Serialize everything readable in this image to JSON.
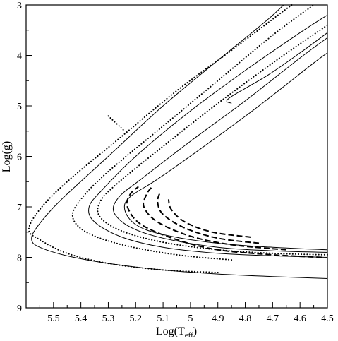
{
  "chart_data": {
    "type": "line",
    "title": "",
    "xlabel_main": "Log(T",
    "xlabel_sub": "eff",
    "xlabel_close": ")",
    "ylabel": "Log(g)",
    "xlim": [
      5.6,
      4.5
    ],
    "ylim": [
      9,
      3
    ],
    "x_reversed": true,
    "y_reversed": true,
    "grid": false,
    "legend": "none",
    "x_ticks": [
      5.5,
      5.4,
      5.3,
      5.2,
      5.1,
      5,
      4.9,
      4.8,
      4.7,
      4.6,
      4.5
    ],
    "x_tick_labels": [
      "5.5",
      "5.4",
      "5.3",
      "5.2",
      "5.1",
      "5",
      "4.9",
      "4.8",
      "4.7",
      "4.6",
      "4.5"
    ],
    "y_ticks": [
      3,
      4,
      5,
      6,
      7,
      8,
      9
    ],
    "y_tick_labels": [
      "3",
      "4",
      "5",
      "6",
      "7",
      "8",
      "9"
    ],
    "series": [
      {
        "style": "dotted",
        "points": [
          [
            4.9,
            8.3
          ],
          [
            5.1,
            8.25
          ],
          [
            5.3,
            8.12
          ],
          [
            5.45,
            7.92
          ],
          [
            5.55,
            7.65
          ],
          [
            5.59,
            7.45
          ],
          [
            5.55,
            7.05
          ],
          [
            5.45,
            6.5
          ],
          [
            5.25,
            5.6
          ],
          [
            5.05,
            4.7
          ],
          [
            4.85,
            3.9
          ],
          [
            4.68,
            3.2
          ],
          [
            4.63,
            3.0
          ]
        ]
      },
      {
        "style": "solid",
        "points": [
          [
            4.5,
            8.42
          ],
          [
            4.7,
            8.38
          ],
          [
            4.9,
            8.33
          ],
          [
            5.1,
            8.25
          ],
          [
            5.3,
            8.12
          ],
          [
            5.45,
            7.97
          ],
          [
            5.55,
            7.8
          ],
          [
            5.58,
            7.65
          ],
          [
            5.56,
            7.4
          ],
          [
            5.48,
            6.9
          ],
          [
            5.3,
            6.0
          ],
          [
            5.1,
            5.0
          ],
          [
            4.9,
            4.1
          ],
          [
            4.72,
            3.3
          ],
          [
            4.66,
            3.0
          ]
        ]
      },
      {
        "style": "dotted",
        "points": [
          [
            4.85,
            8.05
          ],
          [
            5.05,
            7.95
          ],
          [
            5.25,
            7.75
          ],
          [
            5.38,
            7.5
          ],
          [
            5.43,
            7.2
          ],
          [
            5.4,
            6.85
          ],
          [
            5.3,
            6.3
          ],
          [
            5.1,
            5.4
          ],
          [
            4.9,
            4.5
          ],
          [
            4.7,
            3.6
          ],
          [
            4.55,
            3.0
          ]
        ]
      },
      {
        "style": "solid",
        "points": [
          [
            4.5,
            8.0
          ],
          [
            4.7,
            7.97
          ],
          [
            4.9,
            7.92
          ],
          [
            5.1,
            7.8
          ],
          [
            5.25,
            7.6
          ],
          [
            5.35,
            7.3
          ],
          [
            5.37,
            7.0
          ],
          [
            5.32,
            6.65
          ],
          [
            5.2,
            6.0
          ],
          [
            5.0,
            5.1
          ],
          [
            4.8,
            4.3
          ],
          [
            4.6,
            3.55
          ],
          [
            4.5,
            3.2
          ]
        ]
      },
      {
        "style": "dotted",
        "points": [
          [
            4.5,
            7.95
          ],
          [
            4.7,
            7.92
          ],
          [
            4.9,
            7.85
          ],
          [
            5.1,
            7.7
          ],
          [
            5.25,
            7.48
          ],
          [
            5.33,
            7.2
          ],
          [
            5.33,
            6.9
          ],
          [
            5.27,
            6.55
          ],
          [
            5.1,
            5.8
          ],
          [
            4.9,
            4.95
          ],
          [
            4.7,
            4.15
          ],
          [
            4.5,
            3.4
          ]
        ]
      },
      {
        "style": "solid",
        "points": [
          [
            4.5,
            7.9
          ],
          [
            4.7,
            7.87
          ],
          [
            4.9,
            7.8
          ],
          [
            5.1,
            7.62
          ],
          [
            5.22,
            7.4
          ],
          [
            5.28,
            7.1
          ],
          [
            5.26,
            6.8
          ],
          [
            5.18,
            6.45
          ],
          [
            5.0,
            5.7
          ],
          [
            4.8,
            4.9
          ],
          [
            4.6,
            4.05
          ],
          [
            4.5,
            3.65
          ]
        ]
      },
      {
        "style": "solid",
        "points": [
          [
            4.5,
            7.85
          ],
          [
            4.7,
            7.8
          ],
          [
            4.9,
            7.72
          ],
          [
            5.1,
            7.55
          ],
          [
            5.2,
            7.35
          ],
          [
            5.24,
            7.05
          ],
          [
            5.22,
            6.8
          ],
          [
            5.12,
            6.45
          ],
          [
            4.95,
            5.8
          ],
          [
            4.75,
            5.0
          ],
          [
            4.55,
            4.15
          ],
          [
            4.5,
            3.95
          ]
        ]
      },
      {
        "style": "solid",
        "points": [
          [
            4.85,
            4.95
          ],
          [
            4.86,
            4.85
          ],
          [
            4.72,
            4.4
          ],
          [
            4.6,
            3.95
          ],
          [
            4.5,
            3.55
          ]
        ]
      },
      {
        "style": "dashed",
        "points": [
          [
            4.52,
            8.0
          ],
          [
            4.7,
            7.95
          ],
          [
            4.9,
            7.85
          ],
          [
            5.05,
            7.65
          ],
          [
            5.18,
            7.35
          ],
          [
            5.23,
            7.0
          ],
          [
            5.22,
            6.75
          ],
          [
            5.19,
            6.6
          ]
        ]
      },
      {
        "style": "dashed",
        "points": [
          [
            4.65,
            7.85
          ],
          [
            4.85,
            7.75
          ],
          [
            5.0,
            7.58
          ],
          [
            5.12,
            7.3
          ],
          [
            5.17,
            7.0
          ],
          [
            5.16,
            6.75
          ],
          [
            5.14,
            6.6
          ]
        ]
      },
      {
        "style": "dashed",
        "points": [
          [
            4.75,
            7.72
          ],
          [
            4.9,
            7.62
          ],
          [
            5.02,
            7.42
          ],
          [
            5.1,
            7.15
          ],
          [
            5.12,
            6.9
          ],
          [
            5.11,
            6.7
          ]
        ]
      },
      {
        "style": "dashed",
        "points": [
          [
            4.78,
            7.6
          ],
          [
            4.92,
            7.5
          ],
          [
            5.02,
            7.3
          ],
          [
            5.07,
            7.05
          ],
          [
            5.08,
            6.85
          ]
        ]
      },
      {
        "style": "dotted",
        "points": [
          [
            5.3,
            5.2
          ],
          [
            5.24,
            5.5
          ]
        ]
      }
    ]
  }
}
